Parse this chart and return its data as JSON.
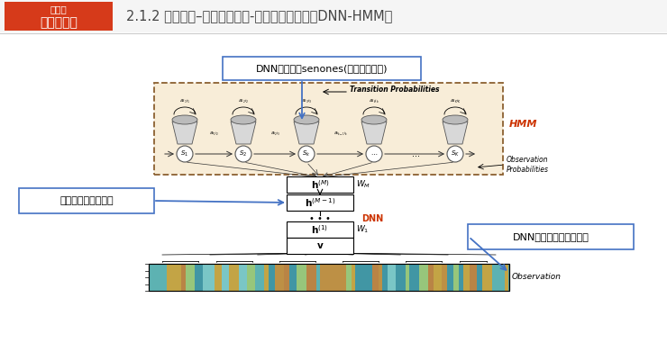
{
  "title": "2.1.2 声学模型–深度神经网络-隐马尔科夫模型（DNN-HMM）",
  "logo_text_top": "雷锋网",
  "logo_text_bottom": "硬创公开课",
  "logo_bg": "#D63A1A",
  "logo_text_color": "#FFFFFF",
  "bg_color": "#FFFFFF",
  "title_color": "#444444",
  "annotation1": "DNN的输出为senones(绑定的三因子)",
  "annotation2": "多层非线性特征变换",
  "annotation3": "DNN输入为较长的帧窗长",
  "label_hmm": "HMM",
  "label_dnn": "DNN",
  "label_obs": "Observation",
  "label_trans": "Transition Probabilities",
  "label_obs_prob": "Observation\nProbabilities",
  "blue_line": "#4472C4",
  "hmm_bg": "#F8EDD8",
  "dashed_edge": "#8B6030",
  "header_line_color": "#CCCCCC"
}
